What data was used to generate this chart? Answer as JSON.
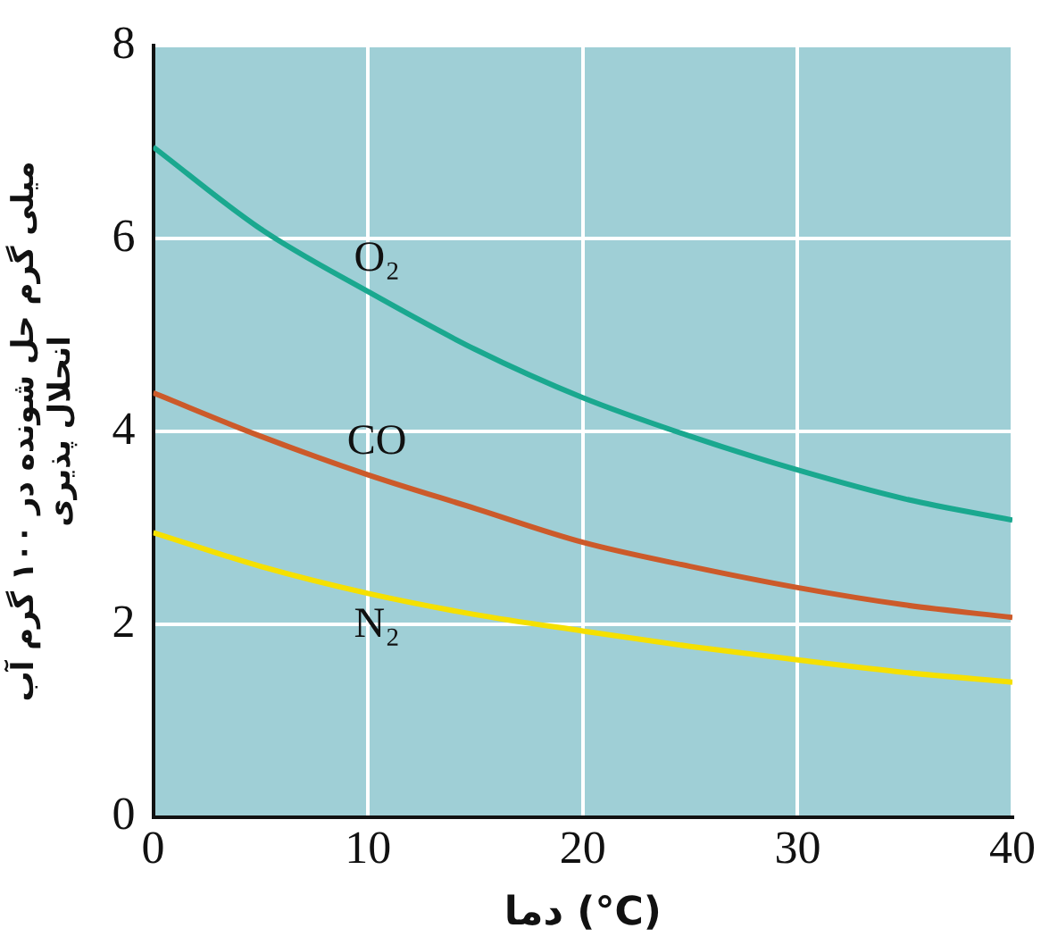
{
  "chart_data": {
    "type": "line",
    "xlabel": "دما (°C)",
    "ylabel": "میلی گرم حل شونده در ۱۰۰ گرم آب\nانحلال پذیری",
    "x": [
      0,
      5,
      10,
      15,
      20,
      25,
      30,
      35,
      40
    ],
    "series": [
      {
        "name": "O₂",
        "color": "#1aa88f",
        "values": [
          6.95,
          6.1,
          5.45,
          4.85,
          4.35,
          3.95,
          3.6,
          3.3,
          3.08
        ]
      },
      {
        "name": "CO",
        "color": "#cc5a2a",
        "values": [
          4.4,
          3.95,
          3.55,
          3.2,
          2.85,
          2.6,
          2.38,
          2.2,
          2.07
        ]
      },
      {
        "name": "N₂",
        "color": "#f5e000",
        "values": [
          2.95,
          2.6,
          2.32,
          2.1,
          1.93,
          1.77,
          1.63,
          1.5,
          1.4
        ]
      }
    ],
    "xlim": [
      0,
      40
    ],
    "xticks": [
      0,
      10,
      20,
      30,
      40
    ],
    "ylim": [
      0,
      8
    ],
    "yticks": [
      0,
      2,
      4,
      6,
      8
    ],
    "grid": true,
    "legend": false,
    "marker": "none",
    "line_style": "solid"
  }
}
